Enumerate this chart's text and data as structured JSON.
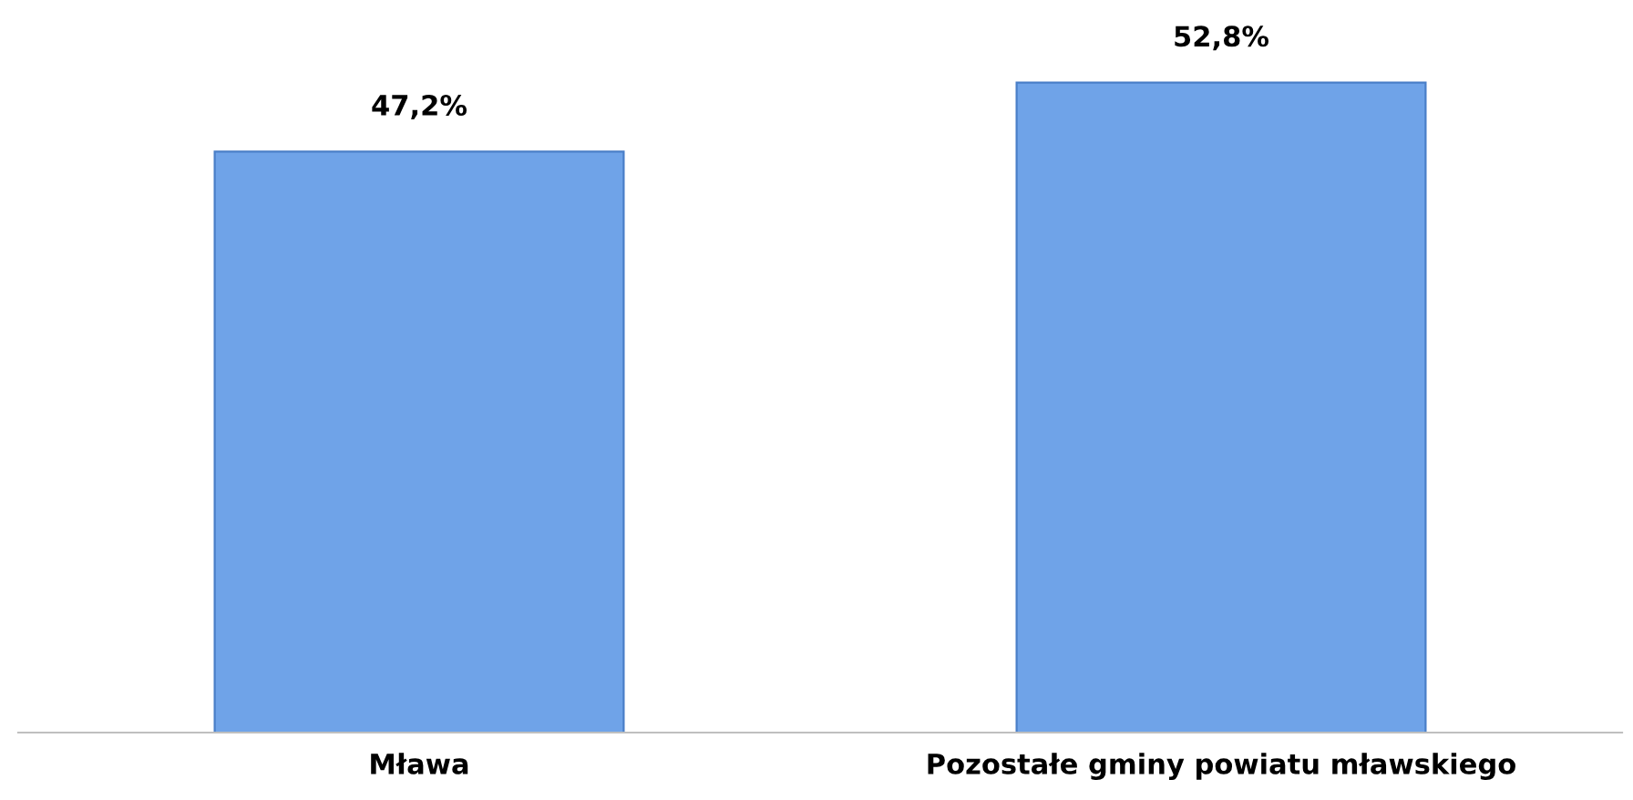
{
  "chart_data": {
    "type": "bar",
    "categories": [
      "Mława",
      "Pozostałe gminy powiatu mławskiego"
    ],
    "values": [
      47.2,
      52.8
    ],
    "value_labels": [
      "47,2%",
      "52,8%"
    ],
    "color": "#6fa3e8",
    "grid": false,
    "legend": false
  }
}
